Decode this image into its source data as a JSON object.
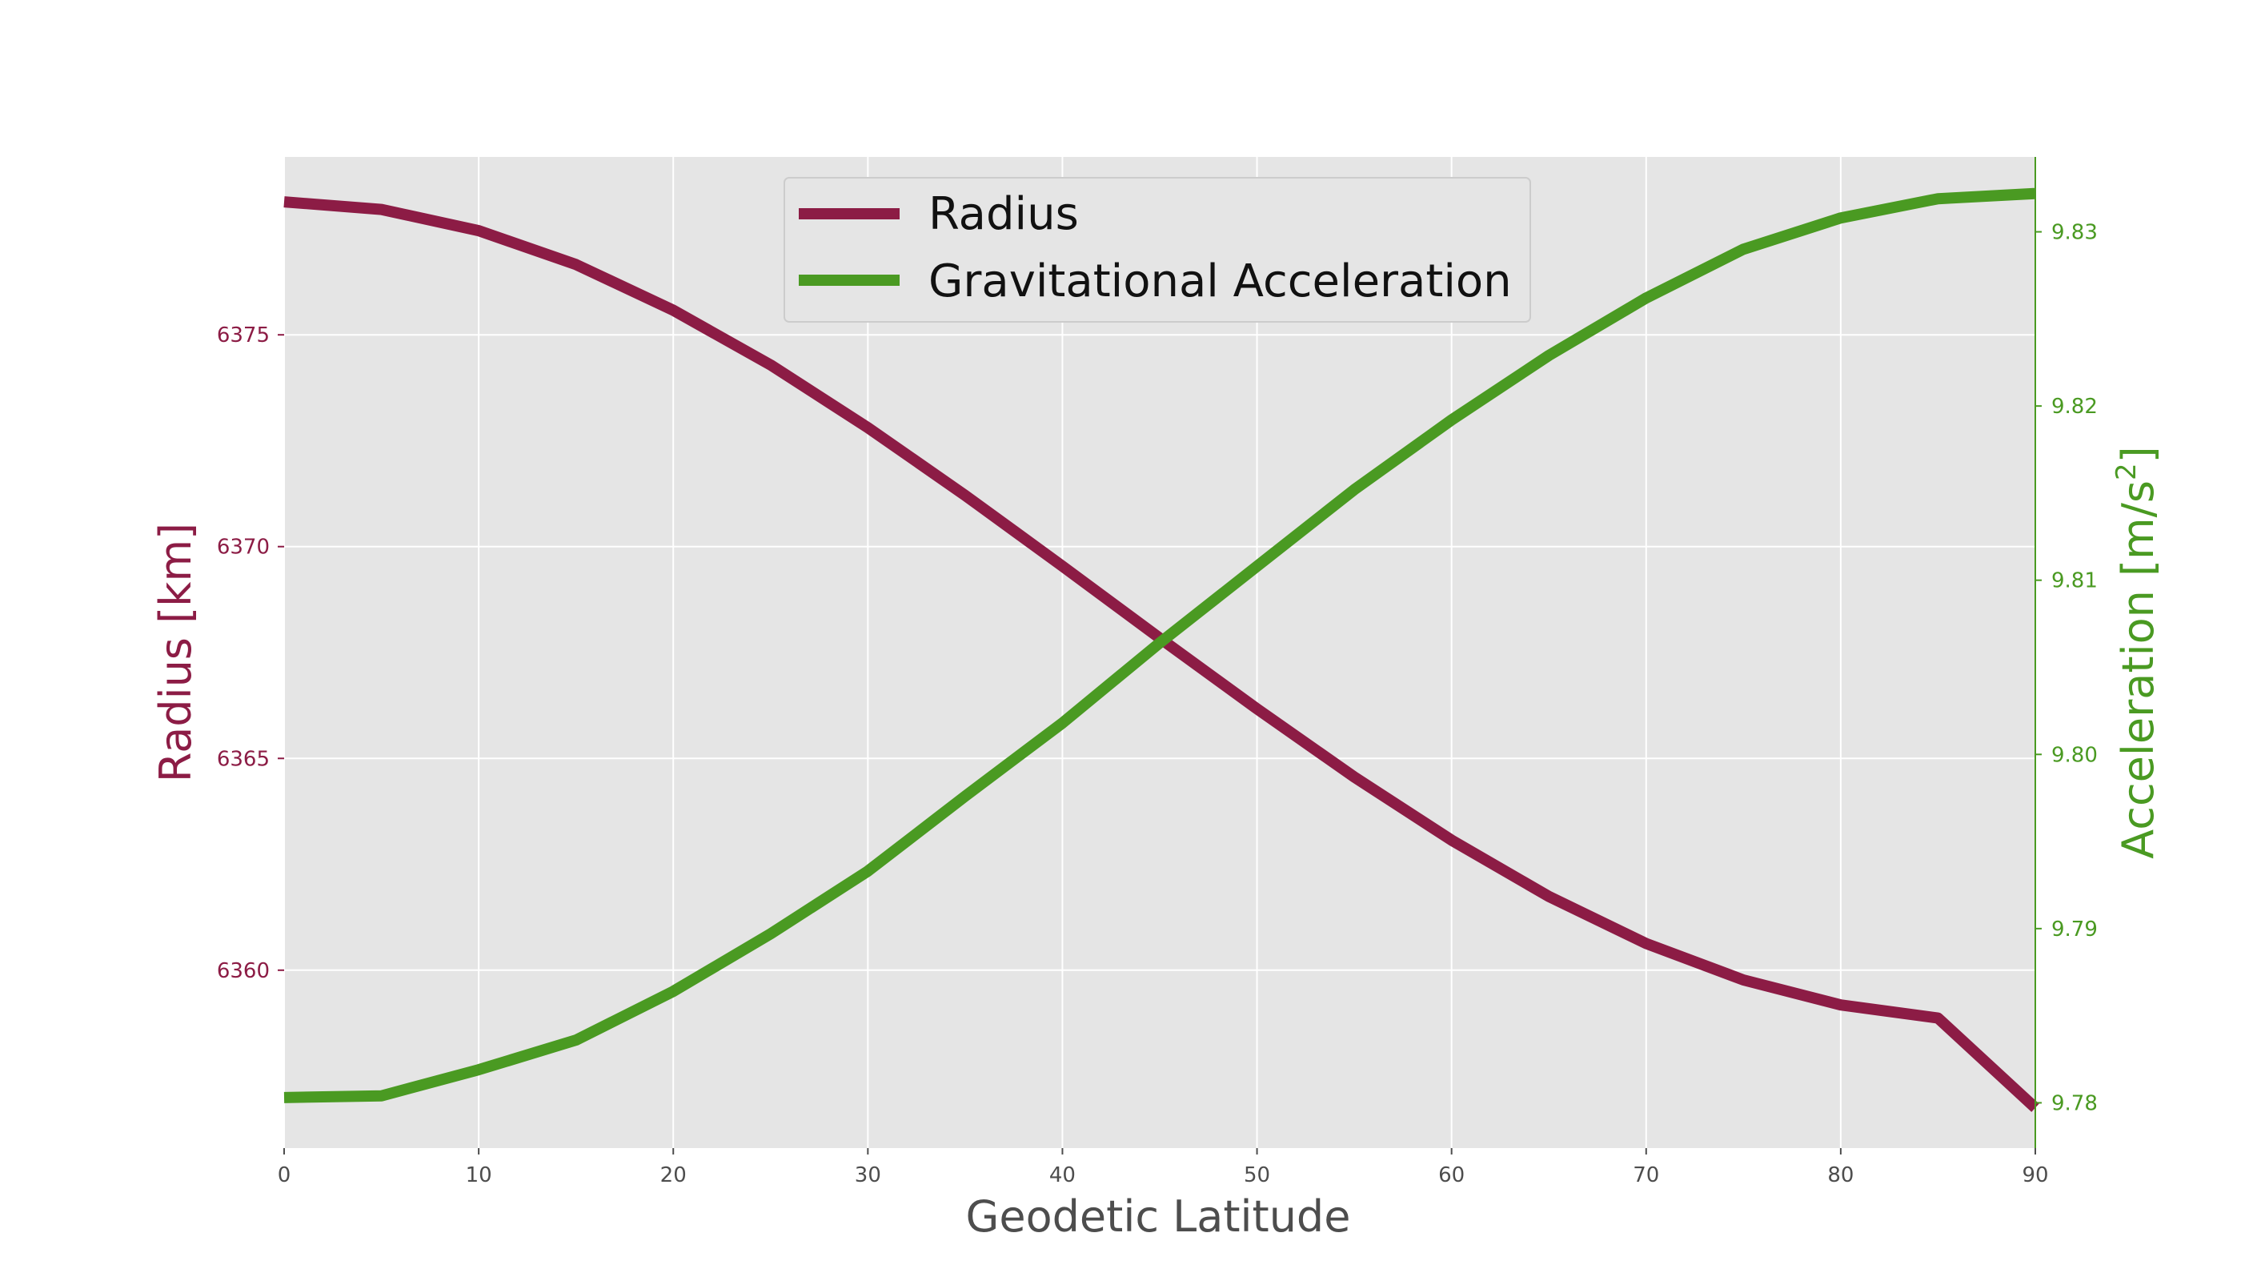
{
  "chart_data": {
    "type": "line",
    "xlabel": "Geodetic Latitude",
    "y_left_label": "Radius [km]",
    "y_right_label_prefix": "Acceleration [m/s",
    "y_right_label_sup": "2",
    "y_right_label_suffix": "]",
    "x_range": [
      0,
      90
    ],
    "y_left_range": [
      6355.8,
      6379.2
    ],
    "y_right_range": [
      9.7774,
      9.8343
    ],
    "x_ticks": [
      0,
      10,
      20,
      30,
      40,
      50,
      60,
      70,
      80,
      90
    ],
    "y_left_ticks": [
      6360,
      6365,
      6370,
      6375
    ],
    "y_right_ticks": [
      9.78,
      9.79,
      9.8,
      9.81,
      9.82,
      9.83
    ],
    "grid": true,
    "legend_position": "top-center",
    "x": [
      0,
      5,
      10,
      15,
      20,
      25,
      30,
      35,
      40,
      45,
      50,
      55,
      60,
      65,
      70,
      75,
      80,
      85,
      90
    ],
    "series": [
      {
        "name": "Radius",
        "axis": "left",
        "color": "#8c1c45",
        "values": [
          6378.14,
          6377.96,
          6377.46,
          6376.66,
          6375.58,
          6374.29,
          6372.81,
          6371.21,
          6369.54,
          6367.84,
          6366.17,
          6364.56,
          6363.07,
          6361.74,
          6360.63,
          6359.77,
          6359.18,
          6358.87,
          6356.75
        ]
      },
      {
        "name": "Gravitational Acceleration",
        "axis": "right",
        "color": "#4a9a22",
        "values": [
          9.7803,
          9.7804,
          9.7819,
          9.7836,
          9.7864,
          9.7897,
          9.7933,
          9.7976,
          9.8018,
          9.8064,
          9.8108,
          9.8152,
          9.8192,
          9.8229,
          9.8262,
          9.829,
          9.8308,
          9.8319,
          9.8322
        ]
      }
    ]
  },
  "colors": {
    "plot_bg": "#e5e5e5",
    "grid": "#ffffff",
    "left_axis": "#8c1c45",
    "right_axis": "#4a9a22",
    "x_axis_text": "#4d4d4d"
  }
}
